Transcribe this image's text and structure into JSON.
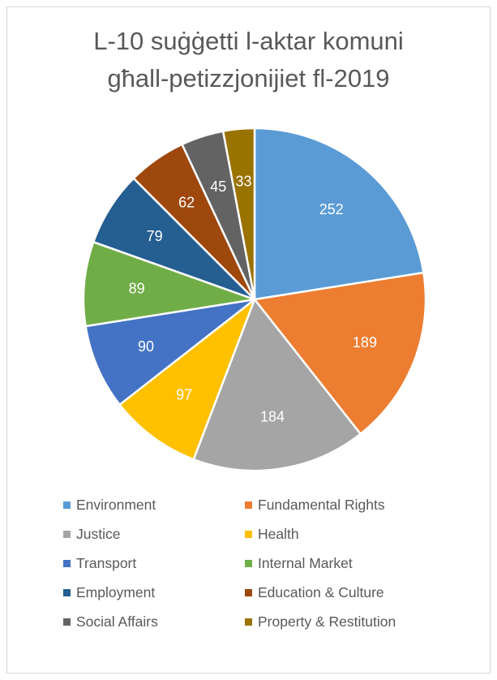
{
  "chart_data": {
    "type": "pie",
    "title_lines": [
      "L-10 suġġetti l-aktar komuni",
      "għall-petizzjonijiet fl-2019"
    ],
    "start_angle_deg": 0,
    "direction": "clockwise",
    "legend_position": "bottom",
    "slices": [
      {
        "label": "Environment",
        "value": 252,
        "color": "#5B9BD5"
      },
      {
        "label": "Fundamental Rights",
        "value": 189,
        "color": "#ED7D31"
      },
      {
        "label": "Justice",
        "value": 184,
        "color": "#A5A5A5"
      },
      {
        "label": "Health",
        "value": 97,
        "color": "#FFC000"
      },
      {
        "label": "Transport",
        "value": 90,
        "color": "#4472C4"
      },
      {
        "label": "Internal Market",
        "value": 89,
        "color": "#70AD47"
      },
      {
        "label": "Employment",
        "value": 79,
        "color": "#255E91"
      },
      {
        "label": "Education & Culture",
        "value": 62,
        "color": "#9E480E"
      },
      {
        "label": "Social Affairs",
        "value": 45,
        "color": "#636363"
      },
      {
        "label": "Property & Restitution",
        "value": 33,
        "color": "#997300"
      }
    ]
  }
}
